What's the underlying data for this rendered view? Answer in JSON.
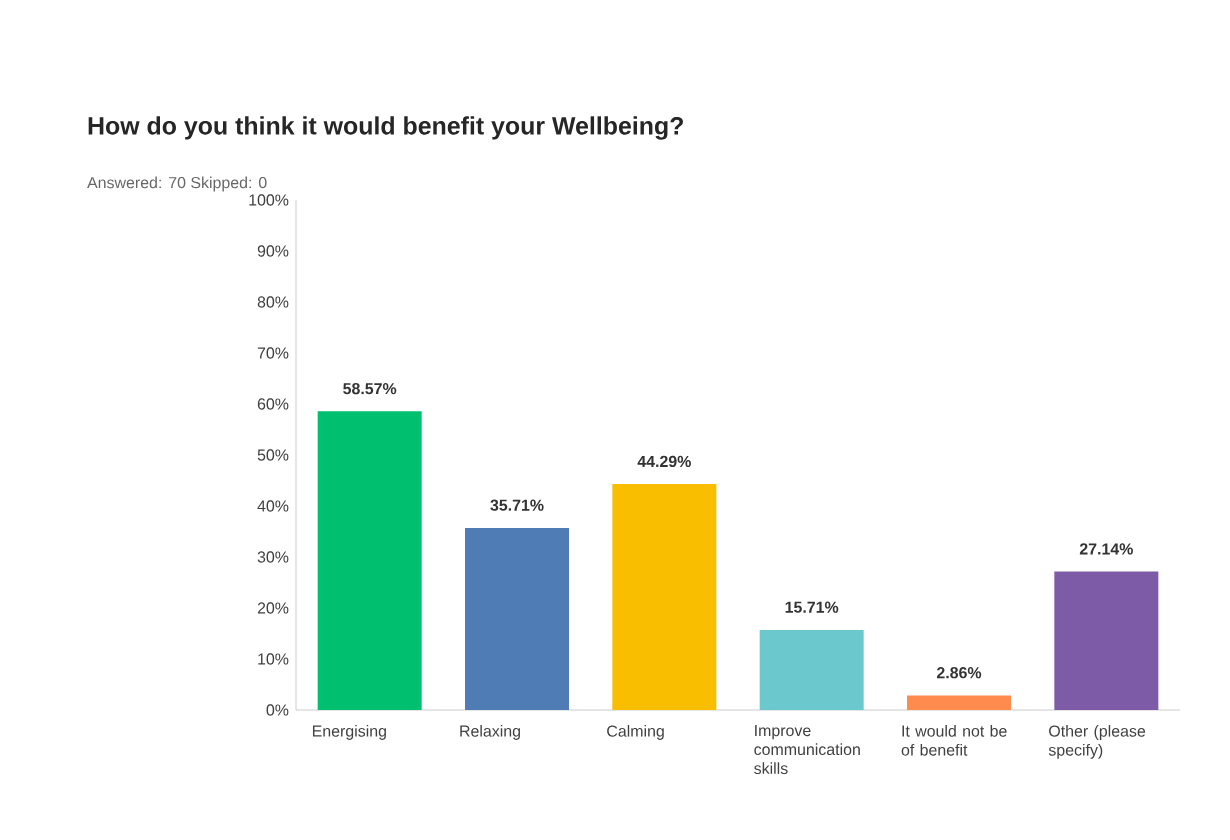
{
  "chart_data": {
    "type": "bar",
    "title": "How do you think it would benefit your Wellbeing?",
    "subtitle": "Answered: 70    Skipped: 0",
    "categories": [
      "Energising",
      "Relaxing",
      "Calming",
      "Improve communication skills",
      "It would not be of benefit",
      "Other (please specify)"
    ],
    "values": [
      58.57,
      35.71,
      44.29,
      15.71,
      2.86,
      27.14
    ],
    "colors": [
      "#00bf6f",
      "#507cb6",
      "#f9be00",
      "#6bc8cd",
      "#ff8b4f",
      "#7d5ba6"
    ],
    "value_labels": [
      "58.57%",
      "35.71%",
      "44.29%",
      "15.71%",
      "2.86%",
      "27.14%"
    ],
    "ylim": [
      0,
      100
    ],
    "yticks": [
      {
        "value": 0,
        "label": "0%"
      },
      {
        "value": 10,
        "label": "10%"
      },
      {
        "value": 20,
        "label": "20%"
      },
      {
        "value": 30,
        "label": "30%"
      },
      {
        "value": 40,
        "label": "40%"
      },
      {
        "value": 50,
        "label": "50%"
      },
      {
        "value": 60,
        "label": "60%"
      },
      {
        "value": 70,
        "label": "70%"
      },
      {
        "value": 80,
        "label": "80%"
      },
      {
        "value": 90,
        "label": "90%"
      },
      {
        "value": 100,
        "label": "100%"
      }
    ],
    "grid": false
  }
}
